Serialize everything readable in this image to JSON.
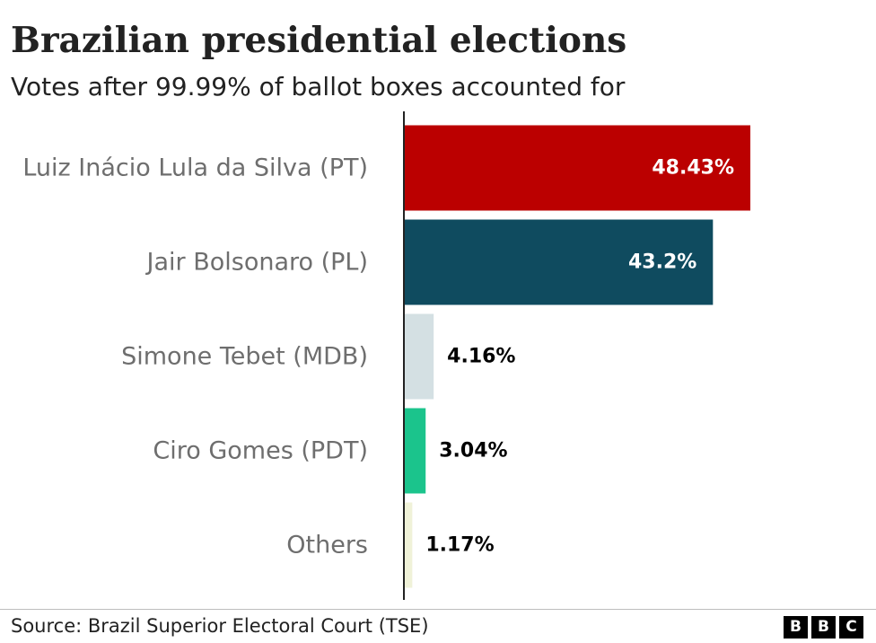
{
  "title": "Brazilian presidential elections",
  "subtitle": "Votes after 99.99% of ballot boxes accounted for",
  "source": "Source: Brazil Superior Electoral Court (TSE)",
  "logo": [
    "B",
    "B",
    "C"
  ],
  "chart_data": {
    "type": "bar",
    "orientation": "horizontal",
    "title": "Brazilian presidential elections",
    "subtitle": "Votes after 99.99% of ballot boxes accounted for",
    "categories": [
      "Luiz Inácio Lula da Silva (PT)",
      "Jair Bolsonaro (PL)",
      "Simone Tebet (MDB)",
      "Ciro Gomes (PDT)",
      "Others"
    ],
    "values": [
      48.43,
      43.2,
      4.16,
      3.04,
      1.17
    ],
    "value_labels": [
      "48.43%",
      "43.2%",
      "4.16%",
      "3.04%",
      "1.17%"
    ],
    "colors": [
      "#bb0000",
      "#0f4b5f",
      "#d4e0e3",
      "#1bc48c",
      "#f0f2d8"
    ],
    "label_colors": [
      "#ffffff",
      "#ffffff",
      "#000000",
      "#000000",
      "#000000"
    ],
    "label_inside": [
      true,
      true,
      false,
      false,
      false
    ],
    "xlabel": "",
    "ylabel": "",
    "xlim": [
      0,
      50
    ],
    "grid": false,
    "legend": "none"
  }
}
